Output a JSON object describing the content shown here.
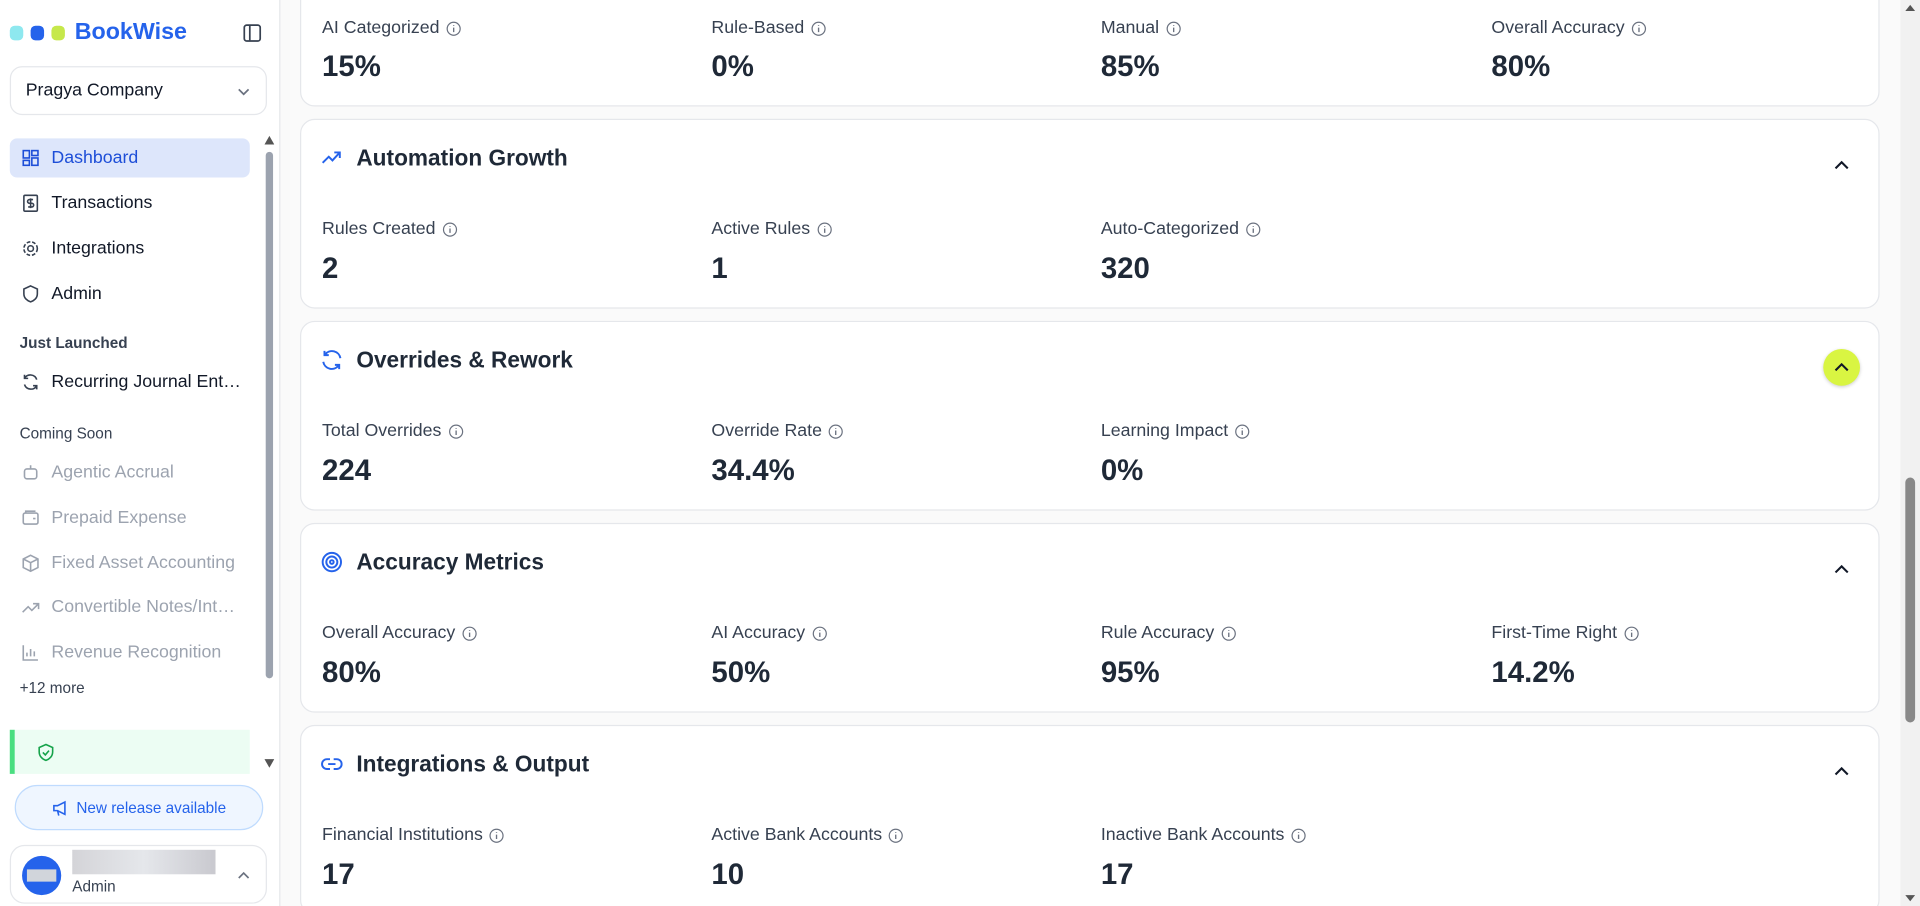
{
  "sidebar": {
    "brand": "BookWise",
    "company": "Pragya Company",
    "nav": [
      "Dashboard",
      "Transactions",
      "Integrations",
      "Admin"
    ],
    "just_launched_label": "Just Launched",
    "just_launched": [
      "Recurring Journal Ent…"
    ],
    "coming_soon_label": "Coming Soon",
    "coming_soon": [
      "Agentic Accrual",
      "Prepaid Expense",
      "Fixed Asset Accounting",
      "Convertible Notes/Int…",
      "Revenue Recognition"
    ],
    "more": "+12 more",
    "release": "New release available",
    "user_role": "Admin"
  },
  "top_metrics": [
    {
      "label": "AI Categorized",
      "value": "15%"
    },
    {
      "label": "Rule-Based",
      "value": "0%"
    },
    {
      "label": "Manual",
      "value": "85%"
    },
    {
      "label": "Overall Accuracy",
      "value": "80%"
    }
  ],
  "sections": [
    {
      "title": "Automation Growth",
      "metrics": [
        {
          "label": "Rules Created",
          "value": "2"
        },
        {
          "label": "Active Rules",
          "value": "1"
        },
        {
          "label": "Auto-Categorized",
          "value": "320"
        }
      ]
    },
    {
      "title": "Overrides & Rework",
      "metrics": [
        {
          "label": "Total Overrides",
          "value": "224"
        },
        {
          "label": "Override Rate",
          "value": "34.4%"
        },
        {
          "label": "Learning Impact",
          "value": "0%"
        }
      ]
    },
    {
      "title": "Accuracy Metrics",
      "metrics": [
        {
          "label": "Overall Accuracy",
          "value": "80%"
        },
        {
          "label": "AI Accuracy",
          "value": "50%"
        },
        {
          "label": "Rule Accuracy",
          "value": "95%"
        },
        {
          "label": "First-Time Right",
          "value": "14.2%"
        }
      ]
    },
    {
      "title": "Integrations & Output",
      "metrics": [
        {
          "label": "Financial Institutions",
          "value": "17"
        },
        {
          "label": "Active Bank Accounts",
          "value": "10"
        },
        {
          "label": "Inactive Bank Accounts",
          "value": "17"
        }
      ]
    }
  ]
}
